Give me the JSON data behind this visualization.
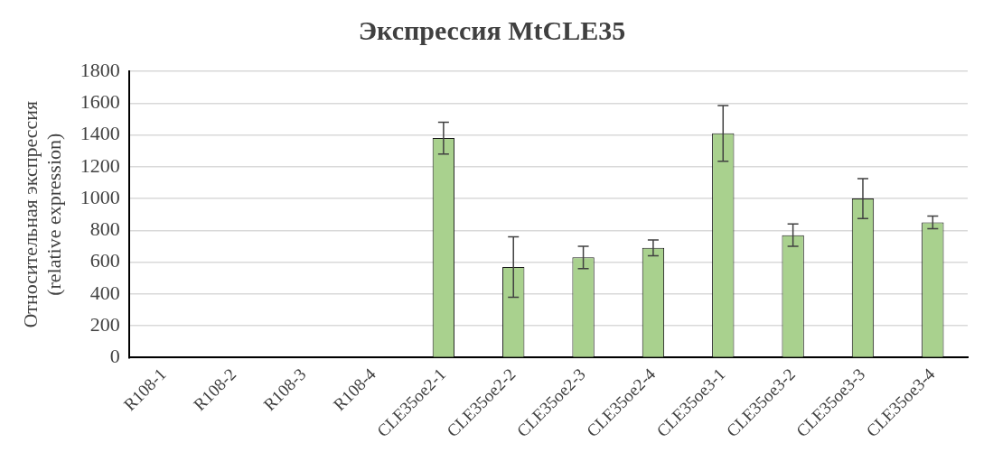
{
  "chart_data": {
    "type": "bar",
    "title": "Экспрессия MtCLE35",
    "ylabel": "Относительная экспрессия\n(relative expression)",
    "categories": [
      "R108-1",
      "R108-2",
      "R108-3",
      "R108-4",
      "CLE35oe2-1",
      "CLE35oe2-2",
      "CLE35oe2-3",
      "CLE35oe2-4",
      "CLE35oe3-1",
      "CLE35oe3-2",
      "CLE35oe3-3",
      "CLE35oe3-4"
    ],
    "values": [
      3,
      3,
      3,
      3,
      1380,
      570,
      630,
      690,
      1410,
      770,
      1000,
      850
    ],
    "errors": [
      null,
      null,
      null,
      null,
      100,
      190,
      70,
      50,
      175,
      70,
      125,
      40
    ],
    "color": "#a9d18e",
    "ylim": [
      0,
      1800
    ],
    "yticks": [
      0,
      200,
      400,
      600,
      800,
      1000,
      1200,
      1400,
      1600,
      1800
    ],
    "grid": "y",
    "legend": false
  }
}
